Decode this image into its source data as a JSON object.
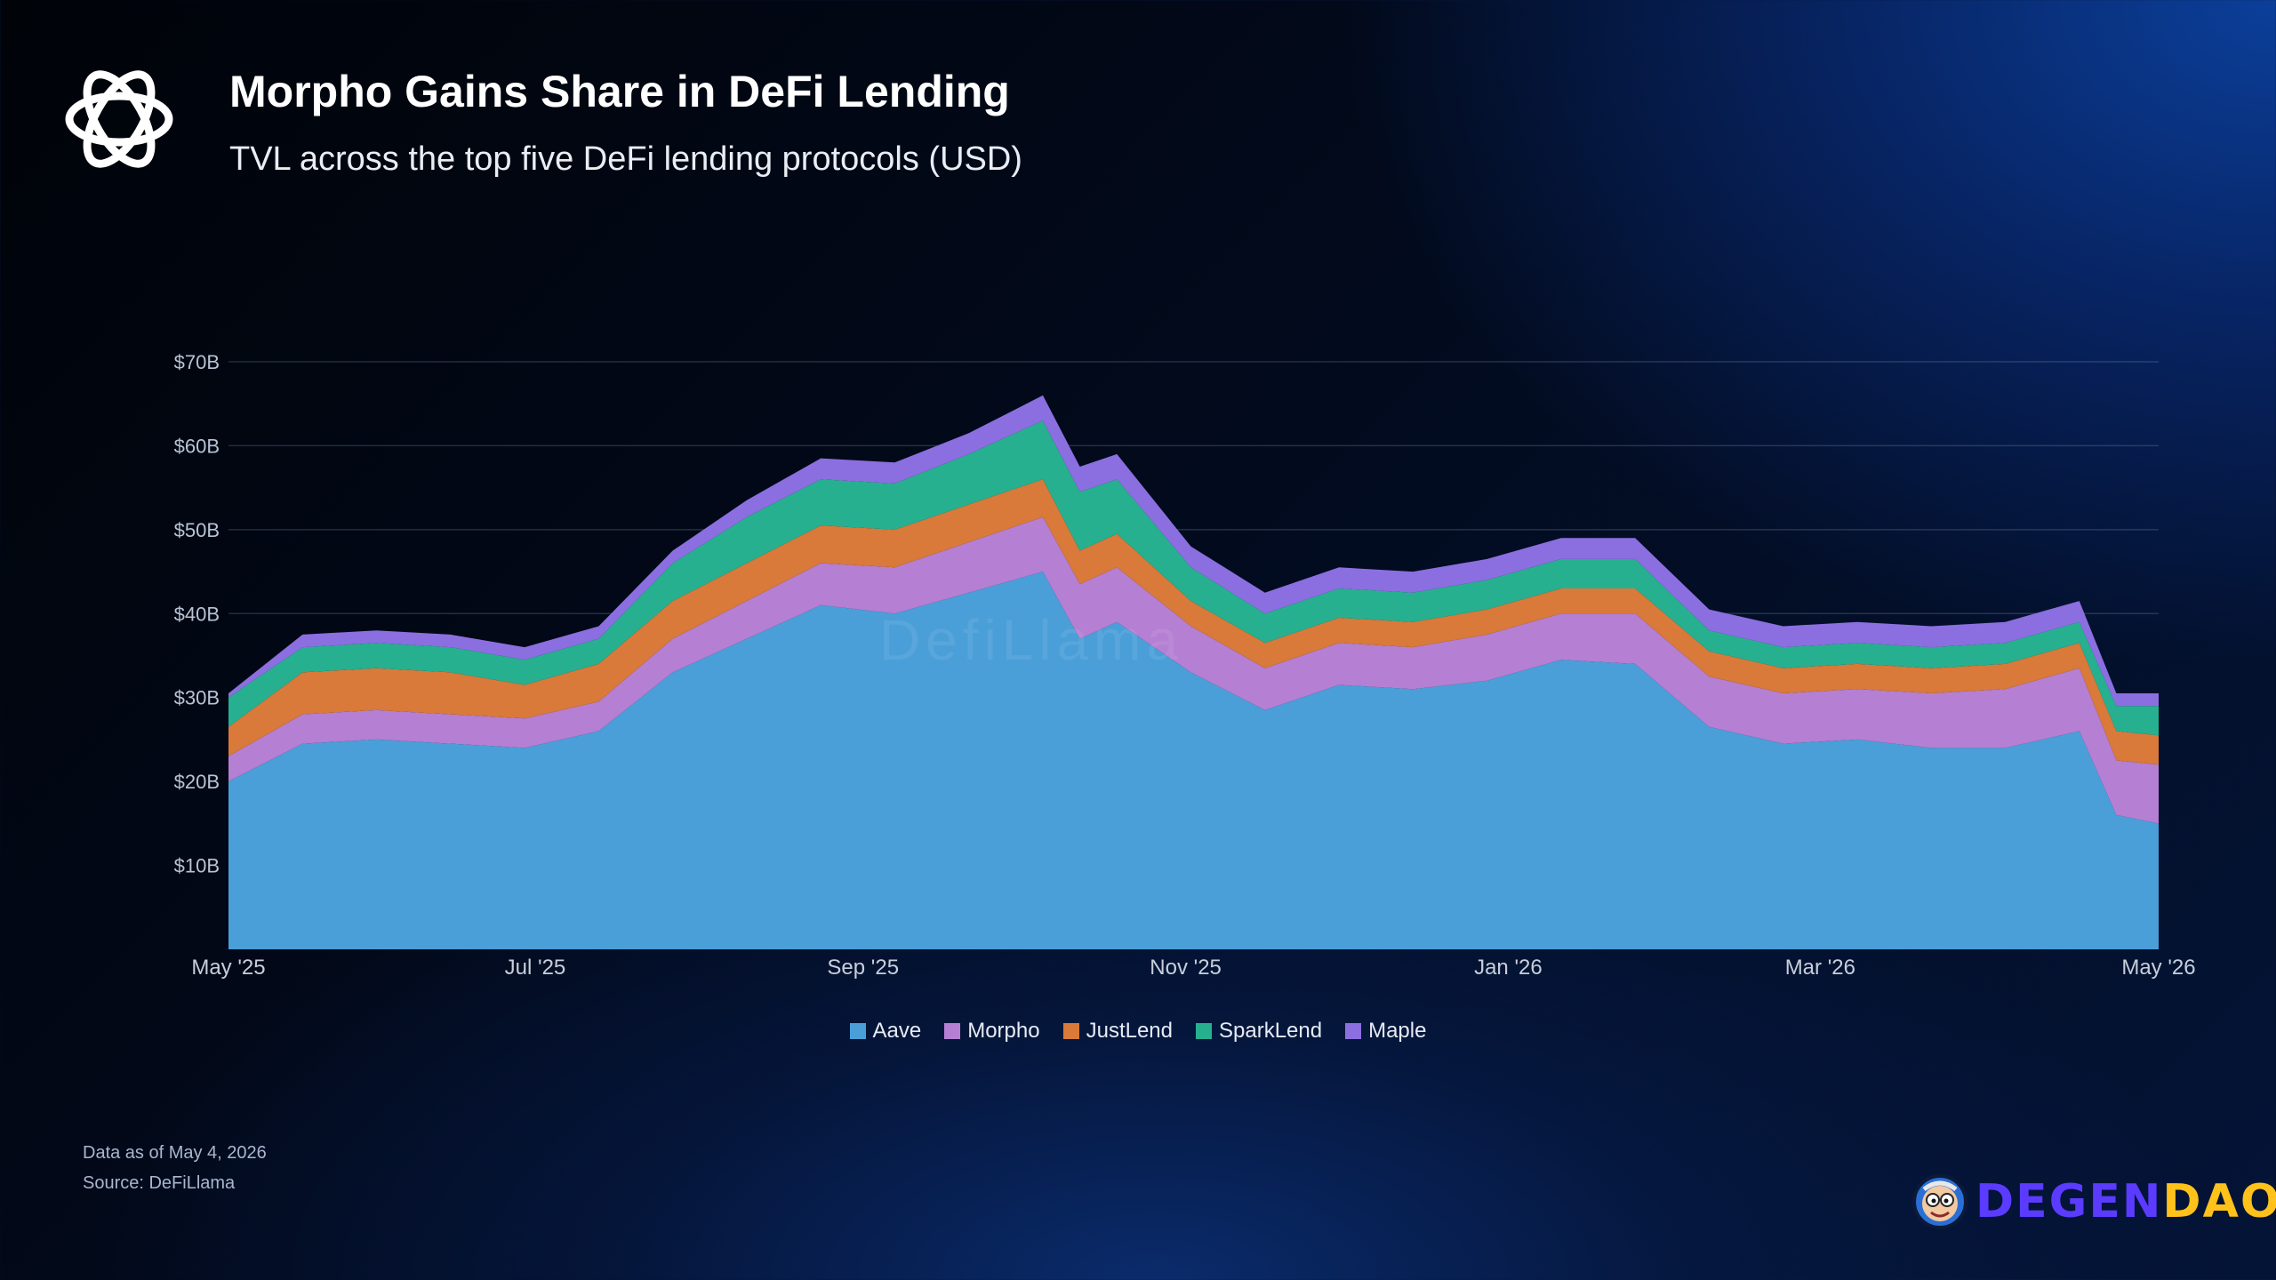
{
  "header": {
    "title": "Morpho Gains Share in DeFi Lending",
    "subtitle": "TVL across the top five DeFi lending protocols (USD)",
    "logo_icon": "morpho-knot-logo-icon"
  },
  "chart_data": {
    "type": "area",
    "stacked": true,
    "title": "Morpho Gains Share in DeFi Lending",
    "subtitle": "TVL across the top five DeFi lending protocols (USD)",
    "x_ticks": [
      "May '25",
      "Jul '25",
      "Sep '25",
      "Nov '25",
      "Jan '26",
      "Mar '26",
      "May '26"
    ],
    "y_ticks": [
      "$10B",
      "$20B",
      "$30B",
      "$40B",
      "$50B",
      "$60B",
      "$70B"
    ],
    "ylim": [
      0,
      70
    ],
    "y_unit": "USD billions",
    "grid": true,
    "legend": "bottom-center",
    "x": [
      "2025-05-04",
      "2025-05-18",
      "2025-06-01",
      "2025-06-15",
      "2025-06-29",
      "2025-07-13",
      "2025-07-27",
      "2025-08-10",
      "2025-08-24",
      "2025-09-07",
      "2025-09-21",
      "2025-10-05",
      "2025-10-12",
      "2025-10-19",
      "2025-11-02",
      "2025-11-16",
      "2025-11-30",
      "2025-12-14",
      "2025-12-28",
      "2026-01-11",
      "2026-01-25",
      "2026-02-08",
      "2026-02-22",
      "2026-03-08",
      "2026-03-22",
      "2026-04-05",
      "2026-04-19",
      "2026-04-26",
      "2026-05-04"
    ],
    "series": [
      {
        "name": "Aave",
        "color": "#4a9fd8",
        "values": [
          20,
          24.5,
          25,
          24.5,
          24,
          26,
          33,
          37,
          41,
          40,
          42.5,
          45,
          37,
          39,
          33,
          28.5,
          31.5,
          31,
          32,
          34.5,
          34,
          26.5,
          24.5,
          25,
          24,
          24,
          26,
          16,
          15
        ]
      },
      {
        "name": "Morpho",
        "color": "#b57fd3",
        "values": [
          3,
          3.5,
          3.5,
          3.5,
          3.5,
          3.5,
          4,
          4.5,
          5,
          5.5,
          6,
          6.5,
          6.5,
          6.5,
          5.5,
          5,
          5,
          5,
          5.5,
          5.5,
          6,
          6,
          6,
          6,
          6.5,
          7,
          7.5,
          6.5,
          7
        ]
      },
      {
        "name": "JustLend",
        "color": "#d9793a",
        "values": [
          3.5,
          5,
          5,
          5,
          4,
          4.5,
          4.5,
          4.5,
          4.5,
          4.5,
          4.5,
          4.5,
          4,
          4,
          3,
          3,
          3,
          3,
          3,
          3,
          3,
          3,
          3,
          3,
          3,
          3,
          3,
          3.5,
          3.5
        ]
      },
      {
        "name": "SparkLend",
        "color": "#27b08f",
        "values": [
          3.5,
          3,
          3,
          3,
          3,
          3,
          4.5,
          5.5,
          5.5,
          5.5,
          6,
          7,
          7,
          6.5,
          4,
          3.5,
          3.5,
          3.5,
          3.5,
          3.5,
          3.5,
          2.5,
          2.5,
          2.5,
          2.5,
          2.5,
          2.5,
          3,
          3.5
        ]
      },
      {
        "name": "Maple",
        "color": "#8b6fe0",
        "values": [
          0.5,
          1.5,
          1.5,
          1.5,
          1.5,
          1.5,
          1.5,
          2,
          2.5,
          2.5,
          2.5,
          3,
          3,
          3,
          2.5,
          2.5,
          2.5,
          2.5,
          2.5,
          2.5,
          2.5,
          2.5,
          2.5,
          2.5,
          2.5,
          2.5,
          2.5,
          1.5,
          1.5
        ]
      }
    ],
    "watermark": "DefiLlama"
  },
  "legend": [
    {
      "label": "Aave",
      "color": "#4a9fd8"
    },
    {
      "label": "Morpho",
      "color": "#b57fd3"
    },
    {
      "label": "JustLend",
      "color": "#d9793a"
    },
    {
      "label": "SparkLend",
      "color": "#27b08f"
    },
    {
      "label": "Maple",
      "color": "#8b6fe0"
    }
  ],
  "footer": {
    "as_of": "Data as of May 4, 2026",
    "source": "Source: DeFiLlama",
    "brand_part1": "DEGEN",
    "brand_part2": "DAO!",
    "brand_icon": "degen-mascot-icon"
  }
}
